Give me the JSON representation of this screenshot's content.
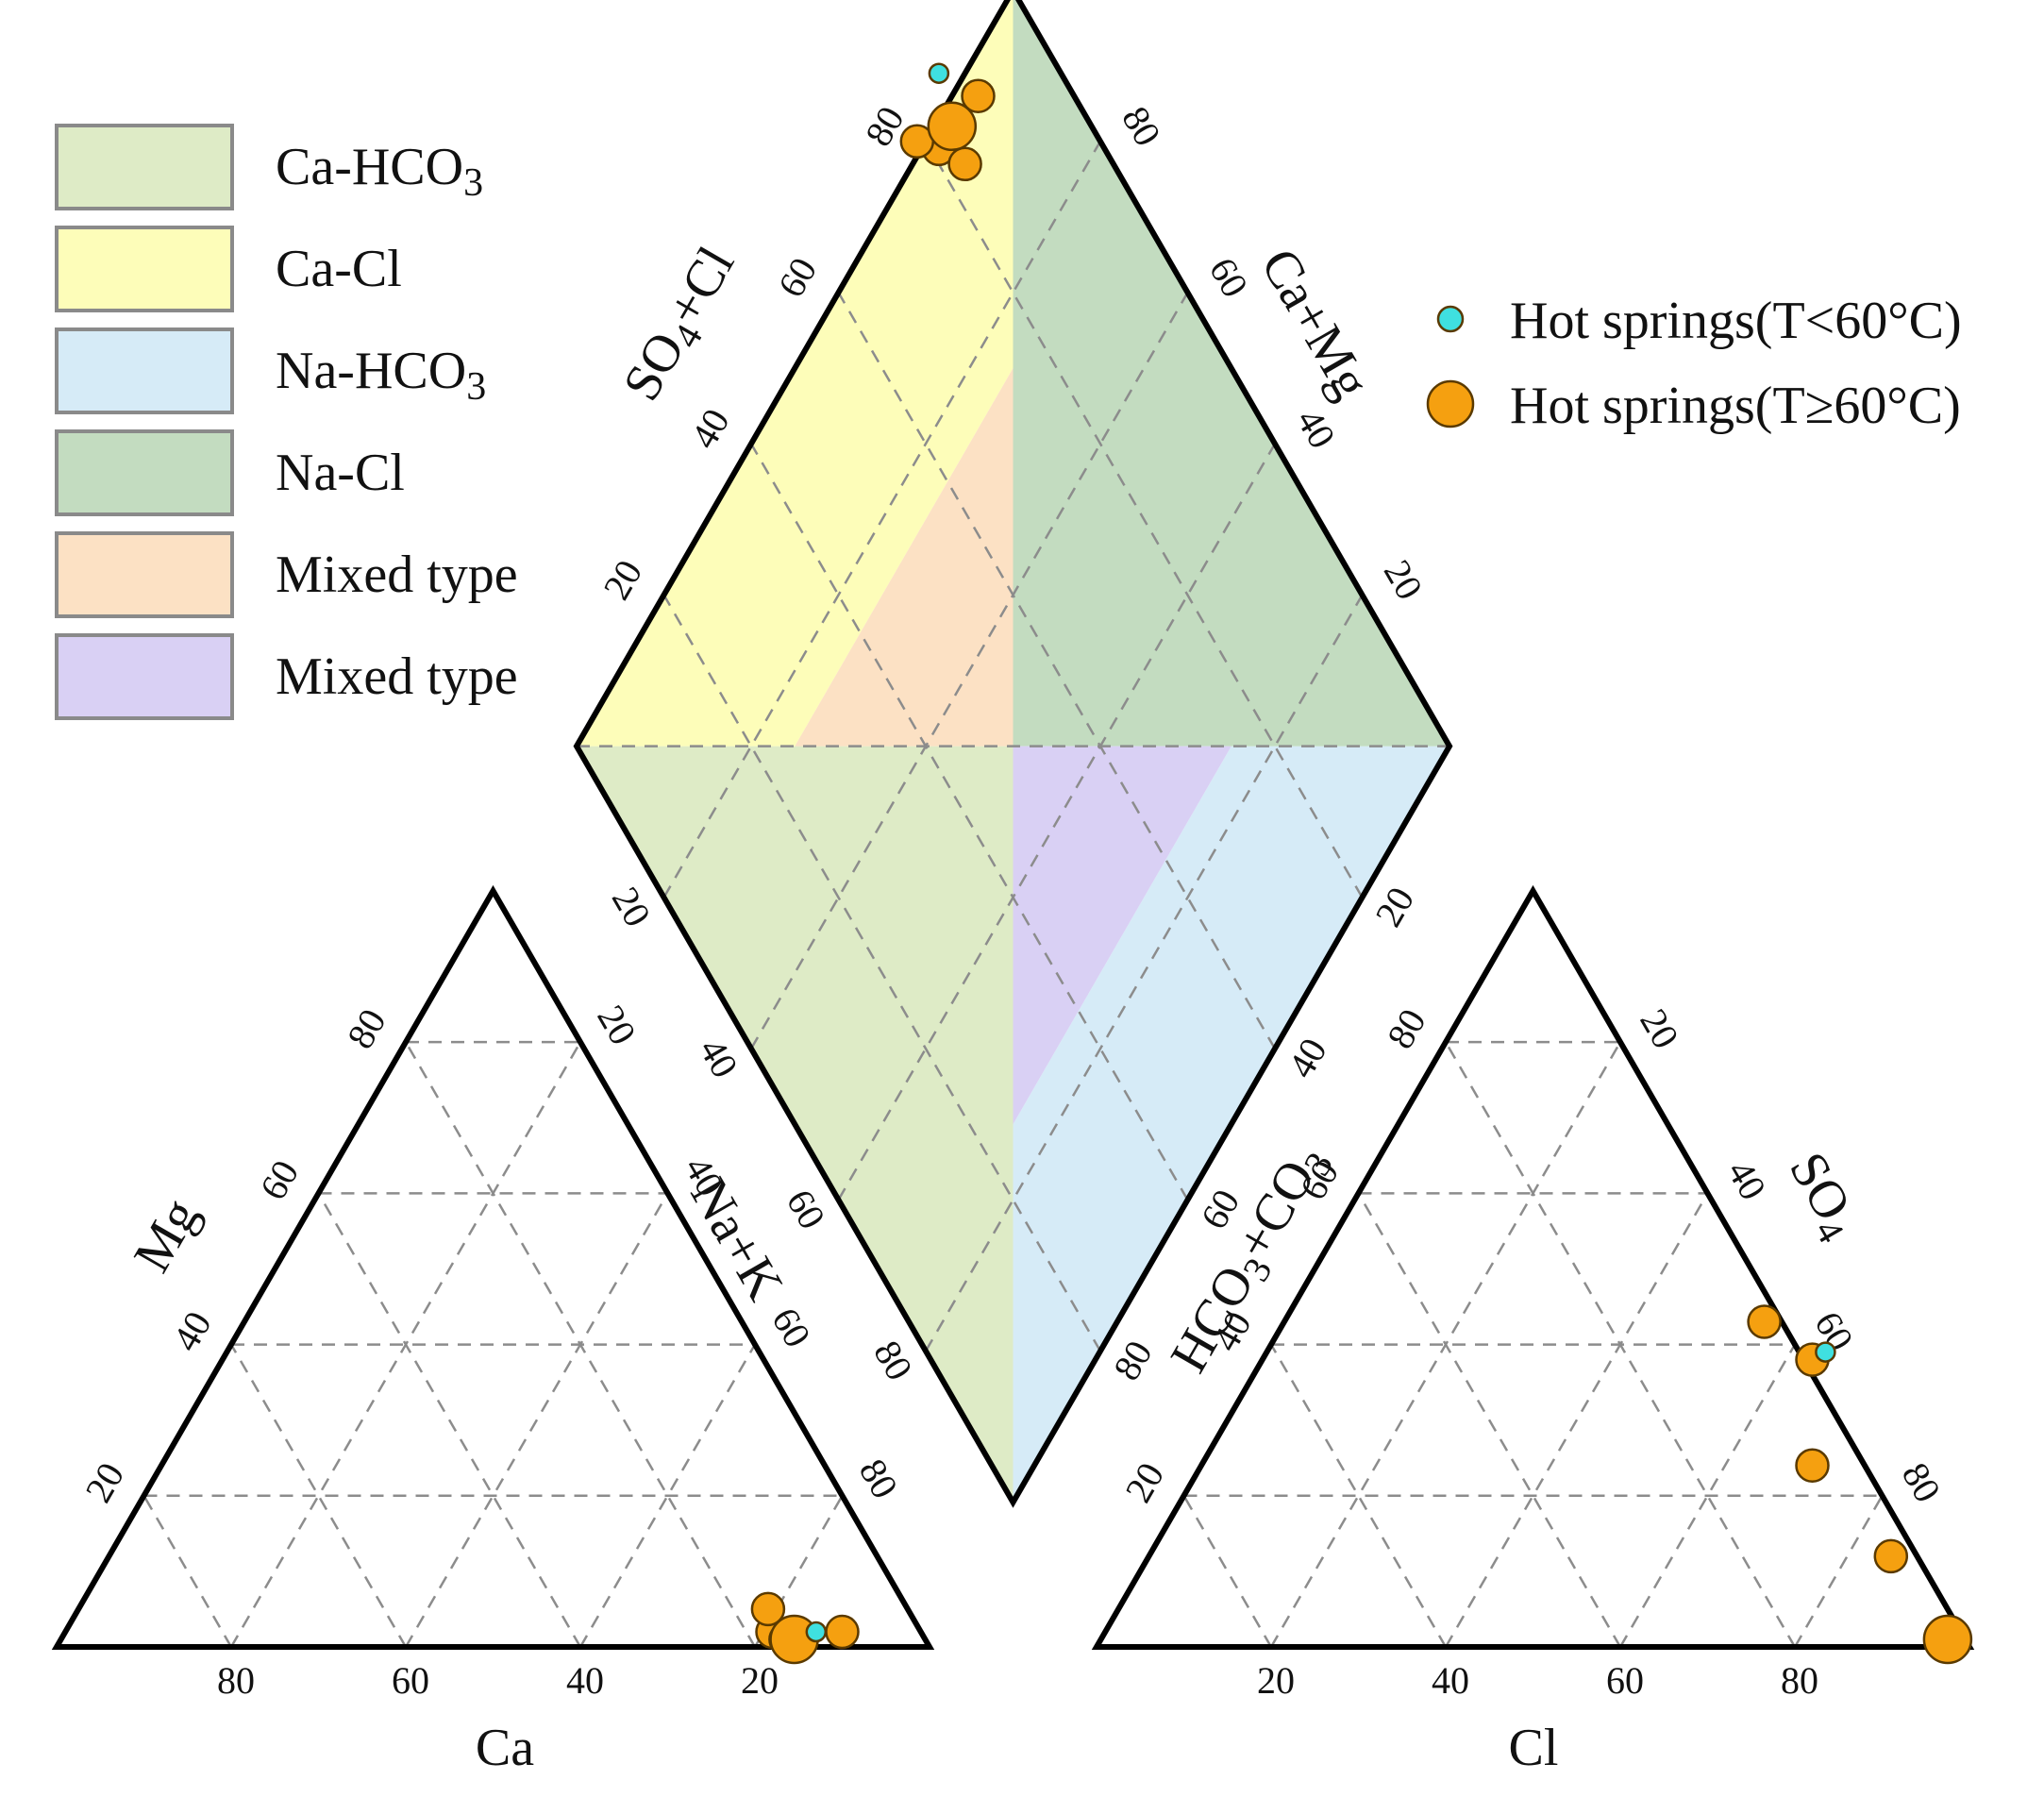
{
  "chart_data": {
    "type": "scatter",
    "subtype": "piper-diagram",
    "title": "",
    "colors": {
      "low_temp": "#3fe0e0",
      "high_temp": "#f5a010",
      "marker_edge": "#5a3a00",
      "Ca-HCO3": "#deebc6",
      "Ca-Cl": "#fdfdb9",
      "Na-HCO3": "#d6ebf7",
      "Na-Cl": "#c3dcc0",
      "mixed_1": "#fce1c4",
      "mixed_2": "#d9d0f4"
    },
    "legend_regions": [
      {
        "key": "Ca-HCO3",
        "label": "Ca-HCO",
        "sub": "3",
        "color": "#deebc6"
      },
      {
        "key": "Ca-Cl",
        "label": "Ca-Cl",
        "sub": "",
        "color": "#fdfdb9"
      },
      {
        "key": "Na-HCO3",
        "label": "Na-HCO",
        "sub": "3",
        "color": "#d6ebf7"
      },
      {
        "key": "Na-Cl",
        "label": "Na-Cl",
        "sub": "",
        "color": "#c3dcc0"
      },
      {
        "key": "mixed_1",
        "label": "Mixed type",
        "sub": "",
        "color": "#fce1c4"
      },
      {
        "key": "mixed_2",
        "label": "Mixed type",
        "sub": "",
        "color": "#d9d0f4"
      }
    ],
    "series": [
      {
        "name": "Hot springs(T<60°C)",
        "color": "#3fe0e0",
        "marker_size": "small",
        "points": [
          {
            "ca": 12,
            "mg": 2,
            "cl": 64,
            "so4": 39
          }
        ]
      },
      {
        "name": "Hot springs(T≥60°C)",
        "color": "#f5a010",
        "marker_size": "large",
        "points": [
          {
            "ca": 17,
            "mg": 2,
            "cl": 55,
            "so4": 43
          },
          {
            "ca": 16,
            "mg": 5,
            "cl": 63,
            "so4": 38
          },
          {
            "ca": 16,
            "mg": 1,
            "cl": 70,
            "so4": 24
          },
          {
            "ca": 9,
            "mg": 2,
            "cl": 85,
            "so4": 12
          },
          {
            "ca": 15,
            "mg": 1,
            "cl": 97,
            "so4": 1
          }
        ]
      }
    ],
    "cation_triangle": {
      "labels": {
        "bottom": "Ca",
        "left": "Mg",
        "right": "Na+K"
      },
      "bottom_ticks": [
        "80",
        "60",
        "40",
        "20"
      ],
      "left_ticks": [
        "20",
        "40",
        "60",
        "80"
      ],
      "right_ticks": [
        "20",
        "40",
        "60",
        "80"
      ]
    },
    "anion_triangle": {
      "labels": {
        "bottom": "Cl",
        "left": "HCO",
        "left_sub": "3",
        "left_suffix": "+CO",
        "left_sub2": "3",
        "right": "SO",
        "right_sub": "4"
      },
      "bottom_ticks": [
        "20",
        "40",
        "60",
        "80"
      ],
      "left_ticks": [
        "80",
        "60",
        "40",
        "20"
      ],
      "right_ticks": [
        "20",
        "40",
        "60",
        "80"
      ]
    },
    "diamond": {
      "labels": {
        "upper_left": "SO",
        "upper_left_sub": "4",
        "upper_left_suffix": "+Cl",
        "upper_right": "Ca+Mg"
      },
      "upper_left_ticks": [
        "80",
        "60",
        "40",
        "20"
      ],
      "upper_right_ticks": [
        "80",
        "60",
        "40",
        "20"
      ],
      "lower_left_ticks": [
        "20",
        "40",
        "60",
        "80"
      ],
      "lower_right_ticks": [
        "20",
        "40",
        "60",
        "80"
      ]
    },
    "grid": true,
    "legend_position": "top-right"
  }
}
